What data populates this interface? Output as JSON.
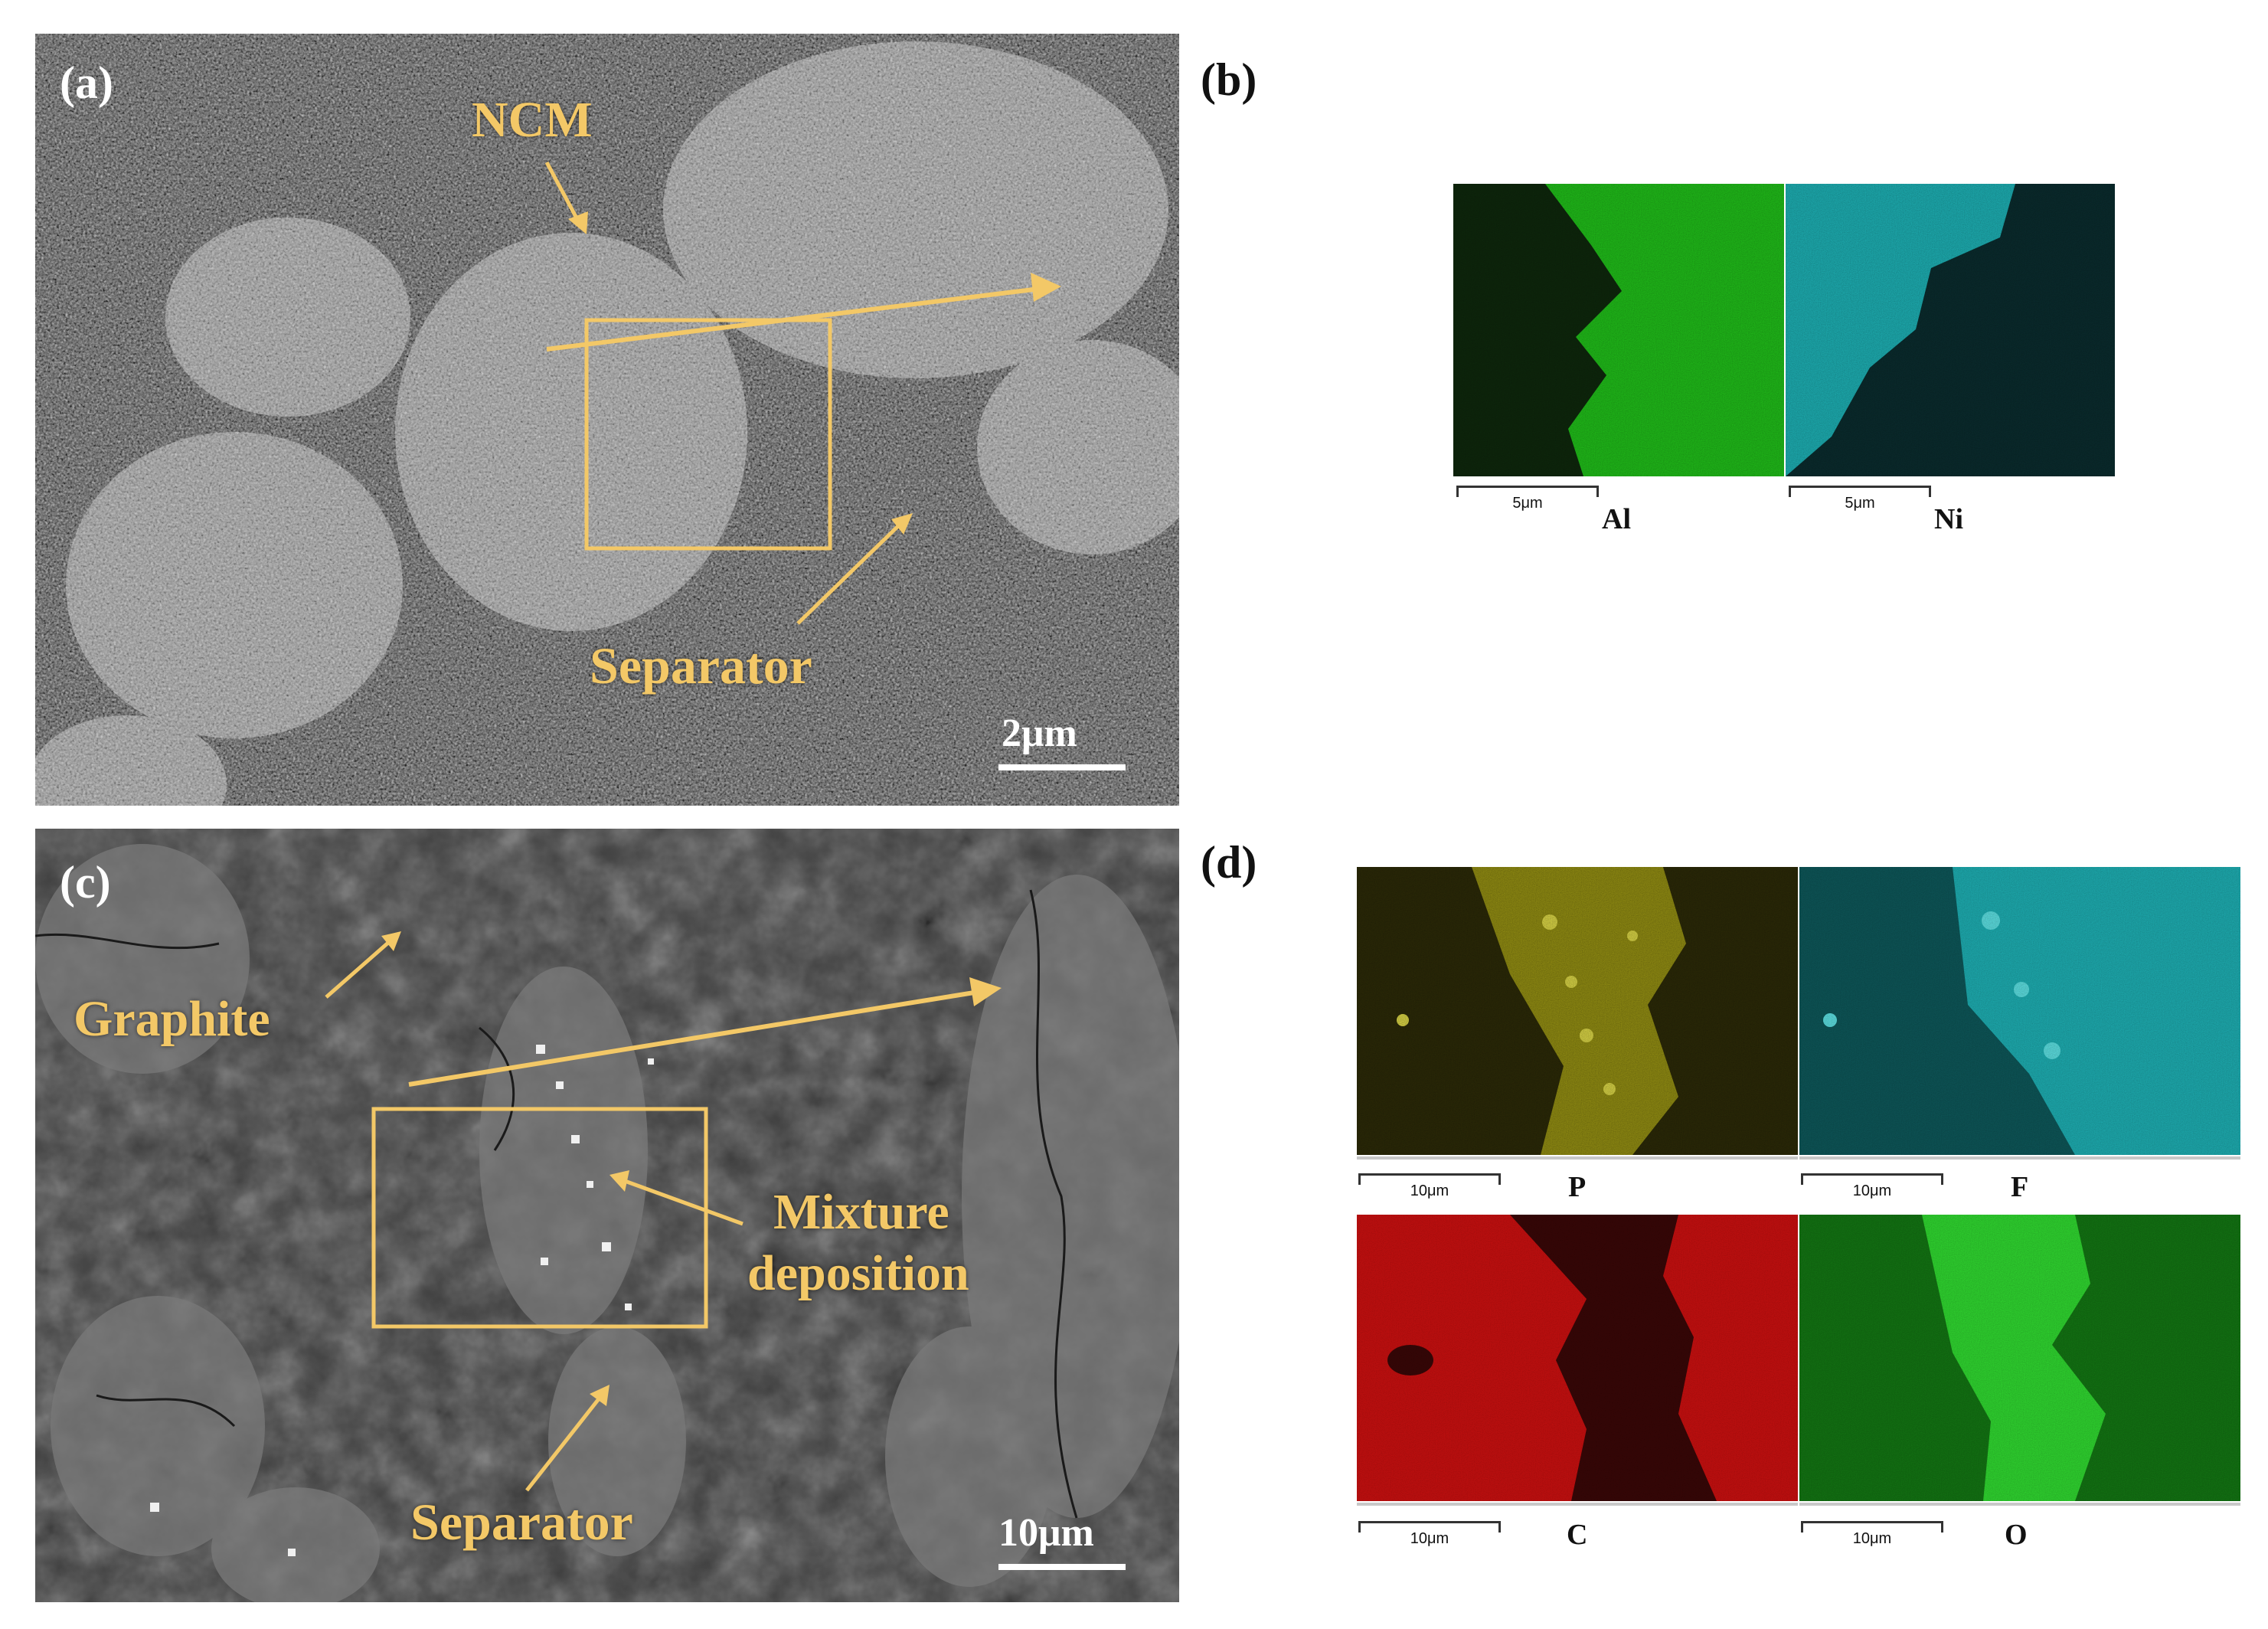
{
  "panels": {
    "a": {
      "letter": "(a)",
      "labels": {
        "ncm": "NCM",
        "separator": "Separator"
      },
      "scale_bar": "2μm"
    },
    "b": {
      "letter": "(b)",
      "maps": [
        {
          "element": "Al",
          "scale": "5μm",
          "color": "#22c71b"
        },
        {
          "element": "Ni",
          "scale": "5μm",
          "color": "#1fc8cc"
        }
      ]
    },
    "c": {
      "letter": "(c)",
      "labels": {
        "graphite": "Graphite",
        "mixture": "Mixture",
        "deposition": "deposition",
        "separator": "Separator"
      },
      "scale_bar": "10μm"
    },
    "d": {
      "letter": "(d)",
      "maps": [
        {
          "element": "P",
          "scale": "10μm",
          "color": "#c9c41a"
        },
        {
          "element": "F",
          "scale": "10μm",
          "color": "#22c9cc"
        },
        {
          "element": "C",
          "scale": "10μm",
          "color": "#d41414"
        },
        {
          "element": "O",
          "scale": "10μm",
          "color": "#24c424"
        }
      ]
    }
  },
  "colors": {
    "annotation": "#F3C867"
  }
}
